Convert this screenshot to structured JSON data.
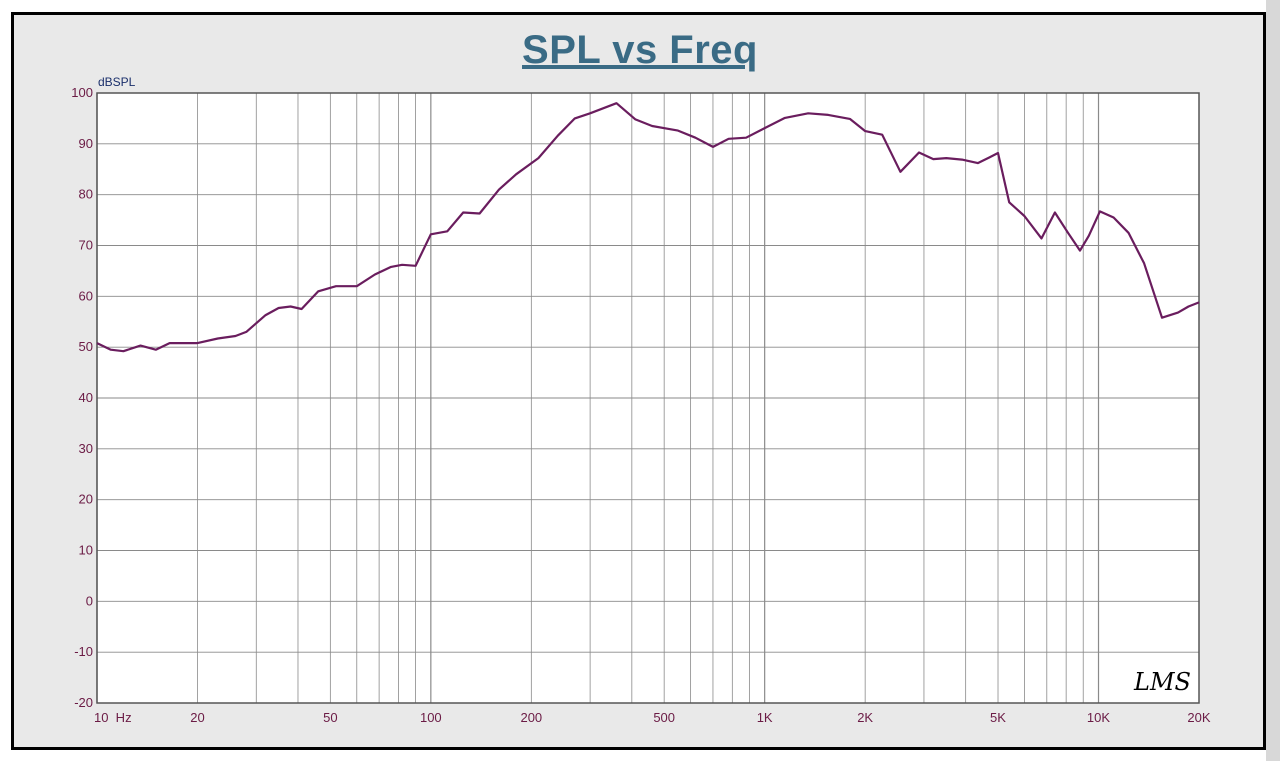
{
  "title": "SPL vs Freq",
  "signature": "LMS",
  "colors": {
    "background": "#e9e9e9",
    "plot_area": "#ffffff",
    "grid": "#8a8a8a",
    "curve": "#6a1d5e",
    "title": "#3a6b85",
    "tick_label": "#6b1b45"
  },
  "chart_data": {
    "type": "line",
    "title": "SPL vs Freq",
    "xlabel": "",
    "ylabel": "dBSPL",
    "x_scale": "log",
    "xlim": [
      10,
      20000
    ],
    "ylim": [
      -20,
      100
    ],
    "grid": true,
    "x_ticks": [
      {
        "value": 10,
        "label": "10  Hz"
      },
      {
        "value": 20,
        "label": "20"
      },
      {
        "value": 50,
        "label": "50"
      },
      {
        "value": 100,
        "label": "100"
      },
      {
        "value": 200,
        "label": "200"
      },
      {
        "value": 500,
        "label": "500"
      },
      {
        "value": 1000,
        "label": "1K"
      },
      {
        "value": 2000,
        "label": "2K"
      },
      {
        "value": 5000,
        "label": "5K"
      },
      {
        "value": 10000,
        "label": "10K"
      },
      {
        "value": 20000,
        "label": "20K"
      }
    ],
    "y_ticks": [
      100,
      90,
      80,
      70,
      60,
      50,
      40,
      30,
      20,
      10,
      0,
      -10,
      -20
    ],
    "series": [
      {
        "x": [
          10,
          11,
          12,
          13.5,
          15,
          16.5,
          18,
          20,
          23,
          26,
          28,
          32,
          35,
          38,
          41,
          46,
          52,
          60,
          68,
          76,
          82,
          90,
          100,
          112,
          125,
          140,
          160,
          180,
          210,
          240,
          270,
          300,
          360,
          410,
          460,
          550,
          620,
          700,
          780,
          880,
          1000,
          1150,
          1350,
          1550,
          1800,
          2000,
          2250,
          2550,
          2900,
          3200,
          3500,
          3900,
          4350,
          4700,
          5000,
          5400,
          6000,
          6750,
          7400,
          8100,
          8800,
          9350,
          10100,
          11100,
          12300,
          13700,
          15500,
          17300,
          18600,
          20000
        ],
        "y": [
          50.8,
          49.5,
          49.2,
          50.3,
          49.5,
          50.8,
          50.8,
          50.8,
          51.7,
          52.2,
          53.0,
          56.3,
          57.7,
          58.0,
          57.5,
          61.0,
          62.0,
          62.0,
          64.3,
          65.8,
          66.2,
          66.0,
          72.2,
          72.8,
          76.5,
          76.3,
          81.0,
          84.0,
          87.2,
          91.6,
          95.0,
          96.0,
          98.0,
          94.8,
          93.5,
          92.6,
          91.2,
          89.4,
          91.0,
          91.2,
          93.1,
          95.1,
          96.0,
          95.7,
          94.9,
          92.5,
          91.8,
          84.5,
          88.3,
          87.0,
          87.2,
          86.9,
          86.2,
          87.3,
          88.2,
          78.5,
          75.8,
          71.4,
          76.5,
          72.5,
          69.0,
          71.9,
          76.7,
          75.5,
          72.5,
          66.5,
          55.8,
          56.8,
          58.0,
          58.8
        ]
      }
    ]
  }
}
